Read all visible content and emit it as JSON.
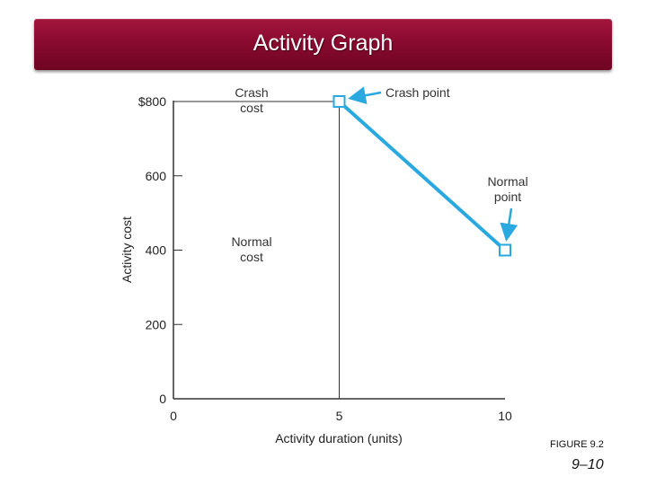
{
  "slide": {
    "title": "Activity Graph",
    "figure_label": "FIGURE 9.2",
    "page_number": "9–10"
  },
  "chart_data": {
    "type": "line",
    "xlabel": "Activity duration (units)",
    "ylabel": "Activity cost",
    "xlim": [
      0,
      10
    ],
    "ylim": [
      0,
      800
    ],
    "x_ticks": [
      {
        "value": 0,
        "label": "0"
      },
      {
        "value": 5,
        "label": "5"
      },
      {
        "value": 10,
        "label": "10"
      }
    ],
    "y_ticks": [
      {
        "value": 0,
        "label": "0"
      },
      {
        "value": 200,
        "label": "200"
      },
      {
        "value": 400,
        "label": "400"
      },
      {
        "value": 600,
        "label": "600"
      },
      {
        "value": 800,
        "label": "$800"
      }
    ],
    "series": [
      {
        "x": [
          5,
          10
        ],
        "y": [
          800,
          400
        ],
        "color": "#2aa8e0"
      }
    ],
    "reference_lines": [
      {
        "orientation": "horizontal",
        "value": 800,
        "from_x": 0,
        "to_x": 5
      },
      {
        "orientation": "vertical",
        "value": 5,
        "from_y": 0,
        "to_y": 800
      }
    ],
    "annotations": {
      "crash_cost": [
        "Crash",
        "cost"
      ],
      "normal_cost": [
        "Normal",
        "cost"
      ],
      "crash_point": "Crash point",
      "normal_point": [
        "Normal",
        "point"
      ]
    },
    "grid": false,
    "legend": "none"
  }
}
